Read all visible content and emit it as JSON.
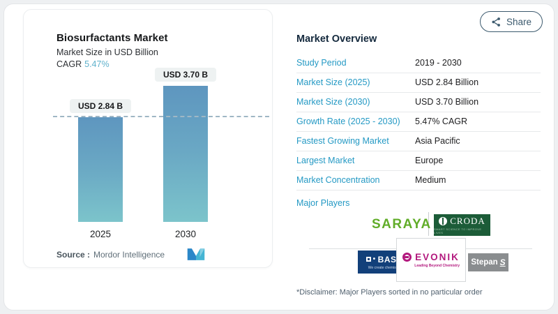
{
  "header": {
    "share_label": "Share"
  },
  "chart_card": {
    "title": "Biosurfactants Market",
    "subtitle": "Market Size in USD Billion",
    "cagr_label": "CAGR",
    "cagr_value": "5.47%",
    "source_label": "Source :",
    "source_name": "Mordor Intelligence"
  },
  "chart_data": {
    "type": "bar",
    "title": "Biosurfactants Market",
    "ylabel": "Market Size in USD Billion",
    "categories": [
      "2025",
      "2030"
    ],
    "values": [
      2.84,
      3.7
    ],
    "bar_labels": [
      "USD 2.84 B",
      "USD 3.70 B"
    ],
    "unit": "USD Billion",
    "ylim": [
      0,
      4.3
    ],
    "reference_line": 2.84,
    "cagr_percent": 5.47,
    "grid": false,
    "legend": "none",
    "bar_gradient": [
      "#5e96bf",
      "#7cc4cb"
    ]
  },
  "overview": {
    "title": "Market Overview",
    "rows": [
      {
        "label": "Study Period",
        "value": "2019 - 2030"
      },
      {
        "label": "Market Size (2025)",
        "value": "USD 2.84 Billion"
      },
      {
        "label": "Market Size (2030)",
        "value": "USD 3.70 Billion"
      },
      {
        "label": "Growth Rate (2025 - 2030)",
        "value": "5.47% CAGR"
      },
      {
        "label": "Fastest Growing Market",
        "value": "Asia Pacific"
      },
      {
        "label": "Largest Market",
        "value": "Europe"
      },
      {
        "label": "Market Concentration",
        "value": "Medium"
      }
    ],
    "major_players_label": "Major Players",
    "disclaimer": "*Disclaimer: Major Players sorted in no particular order"
  },
  "players": {
    "saraya": {
      "name": "SARAYA"
    },
    "croda": {
      "name": "CRODA",
      "tagline": "SMART SCIENCE TO IMPROVE LIVES"
    },
    "basf": {
      "name": "BASF",
      "tagline": "We create chemistry"
    },
    "evonik": {
      "name": "EVONIK",
      "tagline": "Leading Beyond Chemistry"
    },
    "stepan": {
      "name": "Stepan",
      "mark": "S"
    }
  },
  "colors": {
    "accent_teal": "#2499c4",
    "cagr_teal": "#5fb1cc",
    "navy": "#14293d",
    "bar_top": "#5e96bf",
    "bar_bottom": "#7cc4cb",
    "share_slate": "#3c5a6e",
    "saraya_green": "#61ad29",
    "croda_green": "#1c5c38",
    "basf_blue": "#12407a",
    "evonik_magenta": "#b3197e",
    "stepan_gray": "#8a8d8f"
  }
}
